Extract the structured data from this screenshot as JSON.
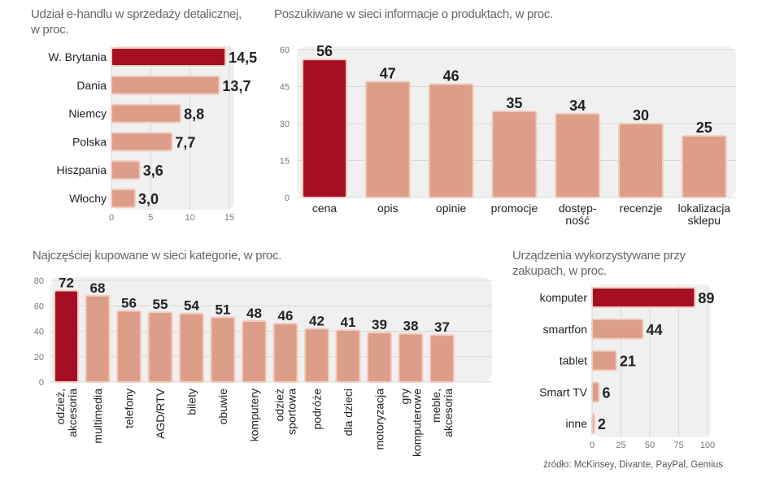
{
  "colors": {
    "highlight": "#a50f24",
    "bar": "#dc9e88",
    "bar_border": "#f2cdbf",
    "panel": "#f0f0f0",
    "grid": "#d8d8d8"
  },
  "source": "źródło: McKinsey, Divante, PayPal, Gemius",
  "chart_data": [
    {
      "type": "bar",
      "orientation": "horizontal",
      "title": "Udział e-handlu w sprzedaży detalicznej, w proc.",
      "title_lines": [
        "Udział e-handlu w sprzedaży detalicznej,",
        "w proc."
      ],
      "categories": [
        "W. Brytania",
        "Dania",
        "Niemcy",
        "Polska",
        "Hiszpania",
        "Włochy"
      ],
      "values": [
        14.5,
        13.7,
        8.8,
        7.7,
        3.6,
        3.0
      ],
      "value_labels": [
        "14,5",
        "13,7",
        "8,8",
        "7,7",
        "3,6",
        "3,0"
      ],
      "highlight_index": 0,
      "xlim": [
        0,
        15
      ],
      "ticks": [
        "0",
        "5",
        "10",
        "15"
      ],
      "grid": true
    },
    {
      "type": "bar",
      "orientation": "vertical",
      "title": "Poszukiwane w sieci informacje o produktach, w proc.",
      "title_lines": [
        "Poszukiwane w sieci informacje o produktach, w proc."
      ],
      "categories": [
        [
          "cena"
        ],
        [
          "opis"
        ],
        [
          "opinie"
        ],
        [
          "promocje"
        ],
        [
          "dostęp-",
          "ność"
        ],
        [
          "recenzje"
        ],
        [
          "lokalizacja",
          "sklepu"
        ]
      ],
      "values": [
        56,
        47,
        46,
        35,
        34,
        30,
        25
      ],
      "value_labels": [
        "56",
        "47",
        "46",
        "35",
        "34",
        "30",
        "25"
      ],
      "highlight_index": 0,
      "ylim": [
        0,
        60
      ],
      "ticks": [
        "0",
        "15",
        "30",
        "45",
        "60"
      ],
      "grid": true
    },
    {
      "type": "bar",
      "orientation": "vertical",
      "title": "Najczęściej kupowane w sieci kategorie, w proc.",
      "title_lines": [
        "Najczęściej kupowane w sieci kategorie, w proc."
      ],
      "categories": [
        [
          "odzież,",
          "akcesoria"
        ],
        [
          "multimedia"
        ],
        [
          "telefony"
        ],
        [
          "AGD/RTV"
        ],
        [
          "bilety"
        ],
        [
          "obuwie"
        ],
        [
          "komputery"
        ],
        [
          "odzież",
          "sportowa"
        ],
        [
          "podróże"
        ],
        [
          "dla dzieci"
        ],
        [
          "motoryzacja"
        ],
        [
          "gry",
          "komputerowe"
        ],
        [
          "meble,",
          "akcesoria"
        ]
      ],
      "values": [
        72,
        68,
        56,
        55,
        54,
        51,
        48,
        46,
        42,
        41,
        39,
        38,
        37
      ],
      "value_labels": [
        "72",
        "68",
        "56",
        "55",
        "54",
        "51",
        "48",
        "46",
        "42",
        "41",
        "39",
        "38",
        "37"
      ],
      "highlight_index": 0,
      "ylim": [
        0,
        80
      ],
      "ticks": [
        "0",
        "20",
        "40",
        "60",
        "80"
      ],
      "grid": true
    },
    {
      "type": "bar",
      "orientation": "horizontal",
      "title": "Urządzenia wykorzystywane przy zakupach, w proc.",
      "title_lines": [
        "Urządzenia wykorzystywane przy",
        "zakupach, w proc."
      ],
      "categories": [
        "komputer",
        "smartfon",
        "tablet",
        "Smart TV",
        "inne"
      ],
      "values": [
        89,
        44,
        21,
        6,
        2
      ],
      "value_labels": [
        "89",
        "44",
        "21",
        "6",
        "2"
      ],
      "highlight_index": 0,
      "xlim": [
        0,
        100
      ],
      "ticks": [
        "0",
        "25",
        "50",
        "75",
        "100"
      ],
      "grid": true
    }
  ]
}
